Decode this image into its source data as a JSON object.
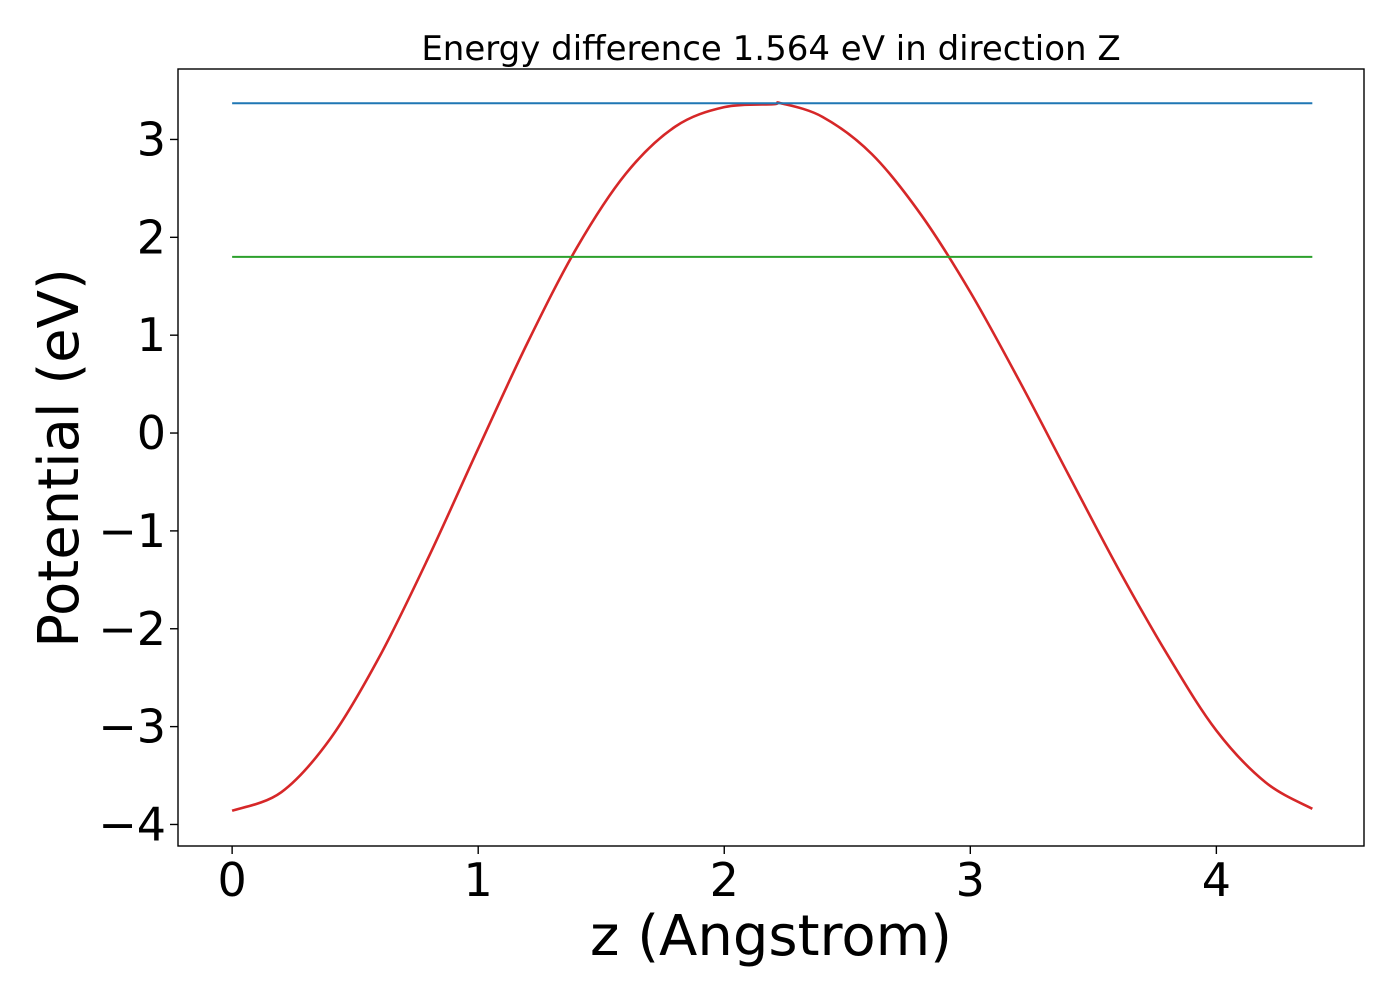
{
  "chart_data": {
    "type": "line",
    "title": "Energy difference 1.564 eV in direction Z",
    "xlabel": "z (Angstrom)",
    "ylabel": "Potential (eV)",
    "xlim": [
      -0.22,
      4.6
    ],
    "ylim": [
      -4.22,
      3.72
    ],
    "xticks": [
      0,
      1,
      2,
      3,
      4
    ],
    "xtick_labels": [
      "0",
      "1",
      "2",
      "3",
      "4"
    ],
    "yticks": [
      -4,
      -3,
      -2,
      -1,
      0,
      1,
      2,
      3
    ],
    "ytick_labels": [
      "−4",
      "−3",
      "−2",
      "−1",
      "0",
      "1",
      "2",
      "3"
    ],
    "grid": false,
    "legend": "none",
    "series": [
      {
        "color": "#d62728",
        "style": "curve",
        "x": [
          0,
          0.2,
          0.4,
          0.6,
          0.8,
          1.0,
          1.2,
          1.4,
          1.6,
          1.8,
          2.0,
          2.2,
          2.23,
          2.4,
          2.6,
          2.8,
          3.0,
          3.2,
          3.4,
          3.6,
          3.8,
          4.0,
          4.2,
          4.39
        ],
        "y": [
          -3.86,
          -3.67,
          -3.12,
          -2.28,
          -1.26,
          -0.16,
          0.92,
          1.89,
          2.65,
          3.13,
          3.33,
          3.36,
          3.37,
          3.23,
          2.85,
          2.23,
          1.44,
          0.53,
          -0.43,
          -1.38,
          -2.26,
          -3.04,
          -3.57,
          -3.84
        ]
      },
      {
        "color": "#1f77b4",
        "style": "hline",
        "x": [
          0,
          4.39
        ],
        "y": [
          3.37,
          3.37
        ]
      },
      {
        "color": "#2ca02c",
        "style": "hline",
        "x": [
          0,
          4.39
        ],
        "y": [
          1.8,
          1.8
        ]
      }
    ]
  }
}
